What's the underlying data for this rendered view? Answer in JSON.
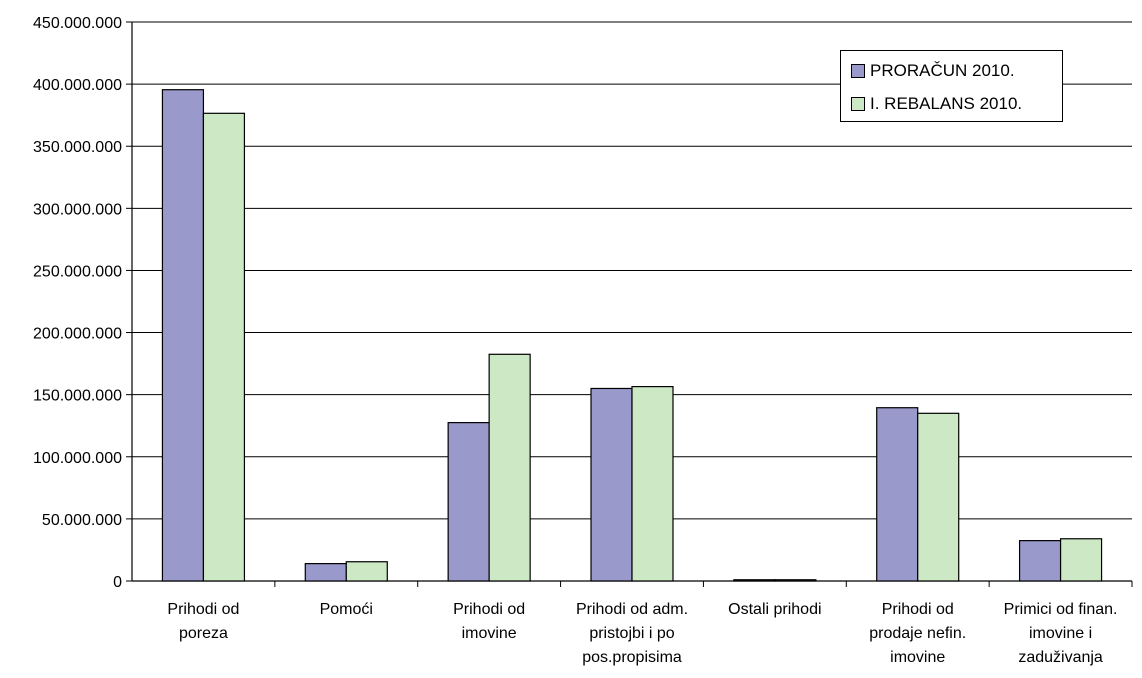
{
  "chart_data": {
    "type": "bar",
    "categories": [
      [
        "Prihodi od",
        "poreza"
      ],
      [
        "Pomoći"
      ],
      [
        "Prihodi od",
        "imovine"
      ],
      [
        "Prihodi od adm.",
        "pristojbi i po",
        "pos.propisima"
      ],
      [
        "Ostali prihodi"
      ],
      [
        "Prihodi od",
        "prodaje nefin.",
        "imovine"
      ],
      [
        "Primici od finan.",
        "imovine i",
        "zaduživanja"
      ]
    ],
    "series": [
      {
        "name": "PRORAČUN 2010.",
        "color": "#9999CC",
        "values": [
          395500000,
          14000000,
          127500000,
          155000000,
          1000000,
          139500000,
          32500000
        ]
      },
      {
        "name": "I. REBALANS 2010.",
        "color": "#CCE8C4",
        "values": [
          376500000,
          15500000,
          182500000,
          156500000,
          1000000,
          135000000,
          34000000
        ]
      }
    ],
    "ylim": [
      0,
      450000000
    ],
    "yticks": [
      "0",
      "50.000.000",
      "100.000.000",
      "150.000.000",
      "200.000.000",
      "250.000.000",
      "300.000.000",
      "350.000.000",
      "400.000.000",
      "450.000.000"
    ],
    "title": "",
    "xlabel": "",
    "ylabel": "",
    "grid": true,
    "legend_position": "top-right"
  }
}
